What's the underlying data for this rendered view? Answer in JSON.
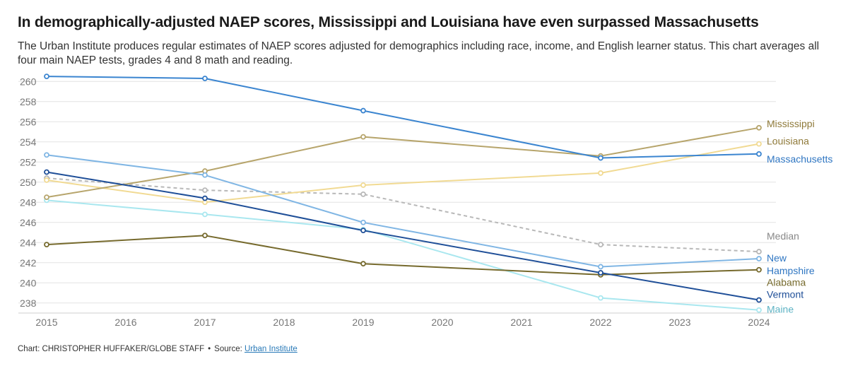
{
  "chart_data": {
    "type": "line",
    "title": "In demographically-adjusted NAEP scores, Mississippi and Louisiana have even surpassed Massachusetts",
    "subtitle": "The Urban Institute produces regular estimates of NAEP scores adjusted for demographics including race, income, and English learner status. This chart averages all four main NAEP tests, grades 4 and 8 math and reading.",
    "xlabel": "",
    "ylabel": "",
    "x_ticks": [
      "2015",
      "2016",
      "2017",
      "2018",
      "2019",
      "2020",
      "2021",
      "2022",
      "2023",
      "2024"
    ],
    "y_ticks": [
      "238",
      "240",
      "242",
      "244",
      "246",
      "248",
      "250",
      "252",
      "254",
      "256",
      "258",
      "260"
    ],
    "xlim": [
      2015,
      2024
    ],
    "ylim": [
      237,
      261
    ],
    "grid": true,
    "x": [
      2015,
      2017,
      2019,
      2022,
      2024
    ],
    "series": [
      {
        "name": "Median",
        "label": "Median",
        "color": "#b8b8b8",
        "dashed": true,
        "values": [
          250.4,
          249.2,
          248.8,
          243.8,
          243.1
        ]
      },
      {
        "name": "Maine",
        "label": "Maine",
        "color": "#a9e7ef",
        "dashed": false,
        "values": [
          248.2,
          246.8,
          245.3,
          238.5,
          237.3
        ]
      },
      {
        "name": "Alabama",
        "label": "Alabama",
        "color": "#766a2d",
        "dashed": false,
        "values": [
          243.8,
          244.7,
          241.9,
          240.8,
          241.3
        ]
      },
      {
        "name": "Louisiana",
        "label": "Louisiana",
        "color": "#f1da93",
        "dashed": false,
        "values": [
          250.2,
          248.0,
          249.7,
          250.9,
          253.8
        ]
      },
      {
        "name": "Mississippi",
        "label": "Mississippi",
        "color": "#b7a56c",
        "dashed": false,
        "values": [
          248.5,
          251.1,
          254.5,
          252.6,
          255.4
        ]
      },
      {
        "name": "New Hampshire",
        "label": "New Hampshire",
        "color": "#80b6e4",
        "dashed": false,
        "values": [
          252.7,
          250.7,
          246.0,
          241.6,
          242.4
        ]
      },
      {
        "name": "Vermont",
        "label": "Vermont",
        "color": "#1f4f98",
        "dashed": false,
        "values": [
          251.0,
          248.4,
          245.2,
          241.0,
          238.3
        ]
      },
      {
        "name": "Massachusetts",
        "label": "Massachusetts",
        "color": "#3b85d0",
        "dashed": false,
        "values": [
          260.5,
          260.3,
          257.1,
          252.4,
          252.8
        ]
      }
    ],
    "label_colors": {
      "Median": "#888888",
      "Maine": "#5eb3c4",
      "Alabama": "#766a2d",
      "Louisiana": "#8f7a3a",
      "Mississippi": "#8f7a3a",
      "New Hampshire": "#2f76c2",
      "Vermont": "#1f4f98",
      "Massachusetts": "#2f76c2"
    }
  },
  "footer": {
    "credit": "Chart: CHRISTOPHER HUFFAKER/GLOBE STAFF",
    "bullet": "•",
    "source_prefix": "Source:",
    "source_link": "Urban Institute"
  }
}
